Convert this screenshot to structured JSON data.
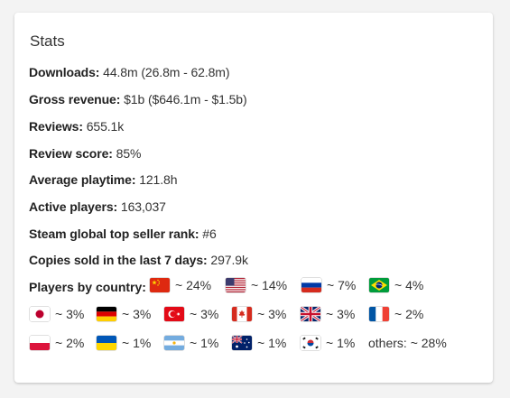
{
  "title": "Stats",
  "stats": [
    {
      "label": "Downloads:",
      "value": "44.8m (26.8m - 62.8m)"
    },
    {
      "label": "Gross revenue:",
      "value": "$1b ($646.1m - $1.5b)"
    },
    {
      "label": "Reviews:",
      "value": "655.1k"
    },
    {
      "label": "Review score:",
      "value": "85%"
    },
    {
      "label": "Average playtime:",
      "value": "121.8h"
    },
    {
      "label": "Active players:",
      "value": "163,037"
    },
    {
      "label": "Steam global top seller rank:",
      "value": "#6"
    },
    {
      "label": "Copies sold in the last 7 days:",
      "value": "297.9k"
    }
  ],
  "countries_label": "Players by country:",
  "countries": [
    {
      "flag": "china-flag-icon",
      "value": "~ 24%"
    },
    {
      "flag": "usa-flag-icon",
      "value": "~ 14%"
    },
    {
      "flag": "russia-flag-icon",
      "value": "~ 7%"
    },
    {
      "flag": "brazil-flag-icon",
      "value": "~ 4%"
    },
    {
      "flag": "japan-flag-icon",
      "value": "~ 3%"
    },
    {
      "flag": "germany-flag-icon",
      "value": "~ 3%"
    },
    {
      "flag": "turkey-flag-icon",
      "value": "~ 3%"
    },
    {
      "flag": "canada-flag-icon",
      "value": "~ 3%"
    },
    {
      "flag": "uk-flag-icon",
      "value": "~ 3%"
    },
    {
      "flag": "france-flag-icon",
      "value": "~ 2%"
    },
    {
      "flag": "poland-flag-icon",
      "value": "~ 2%"
    },
    {
      "flag": "ukraine-flag-icon",
      "value": "~ 1%"
    },
    {
      "flag": "argentina-flag-icon",
      "value": "~ 1%"
    },
    {
      "flag": "australia-flag-icon",
      "value": "~ 1%"
    },
    {
      "flag": "south-korea-flag-icon",
      "value": "~ 1%"
    }
  ],
  "others": "others: ~ 28%"
}
